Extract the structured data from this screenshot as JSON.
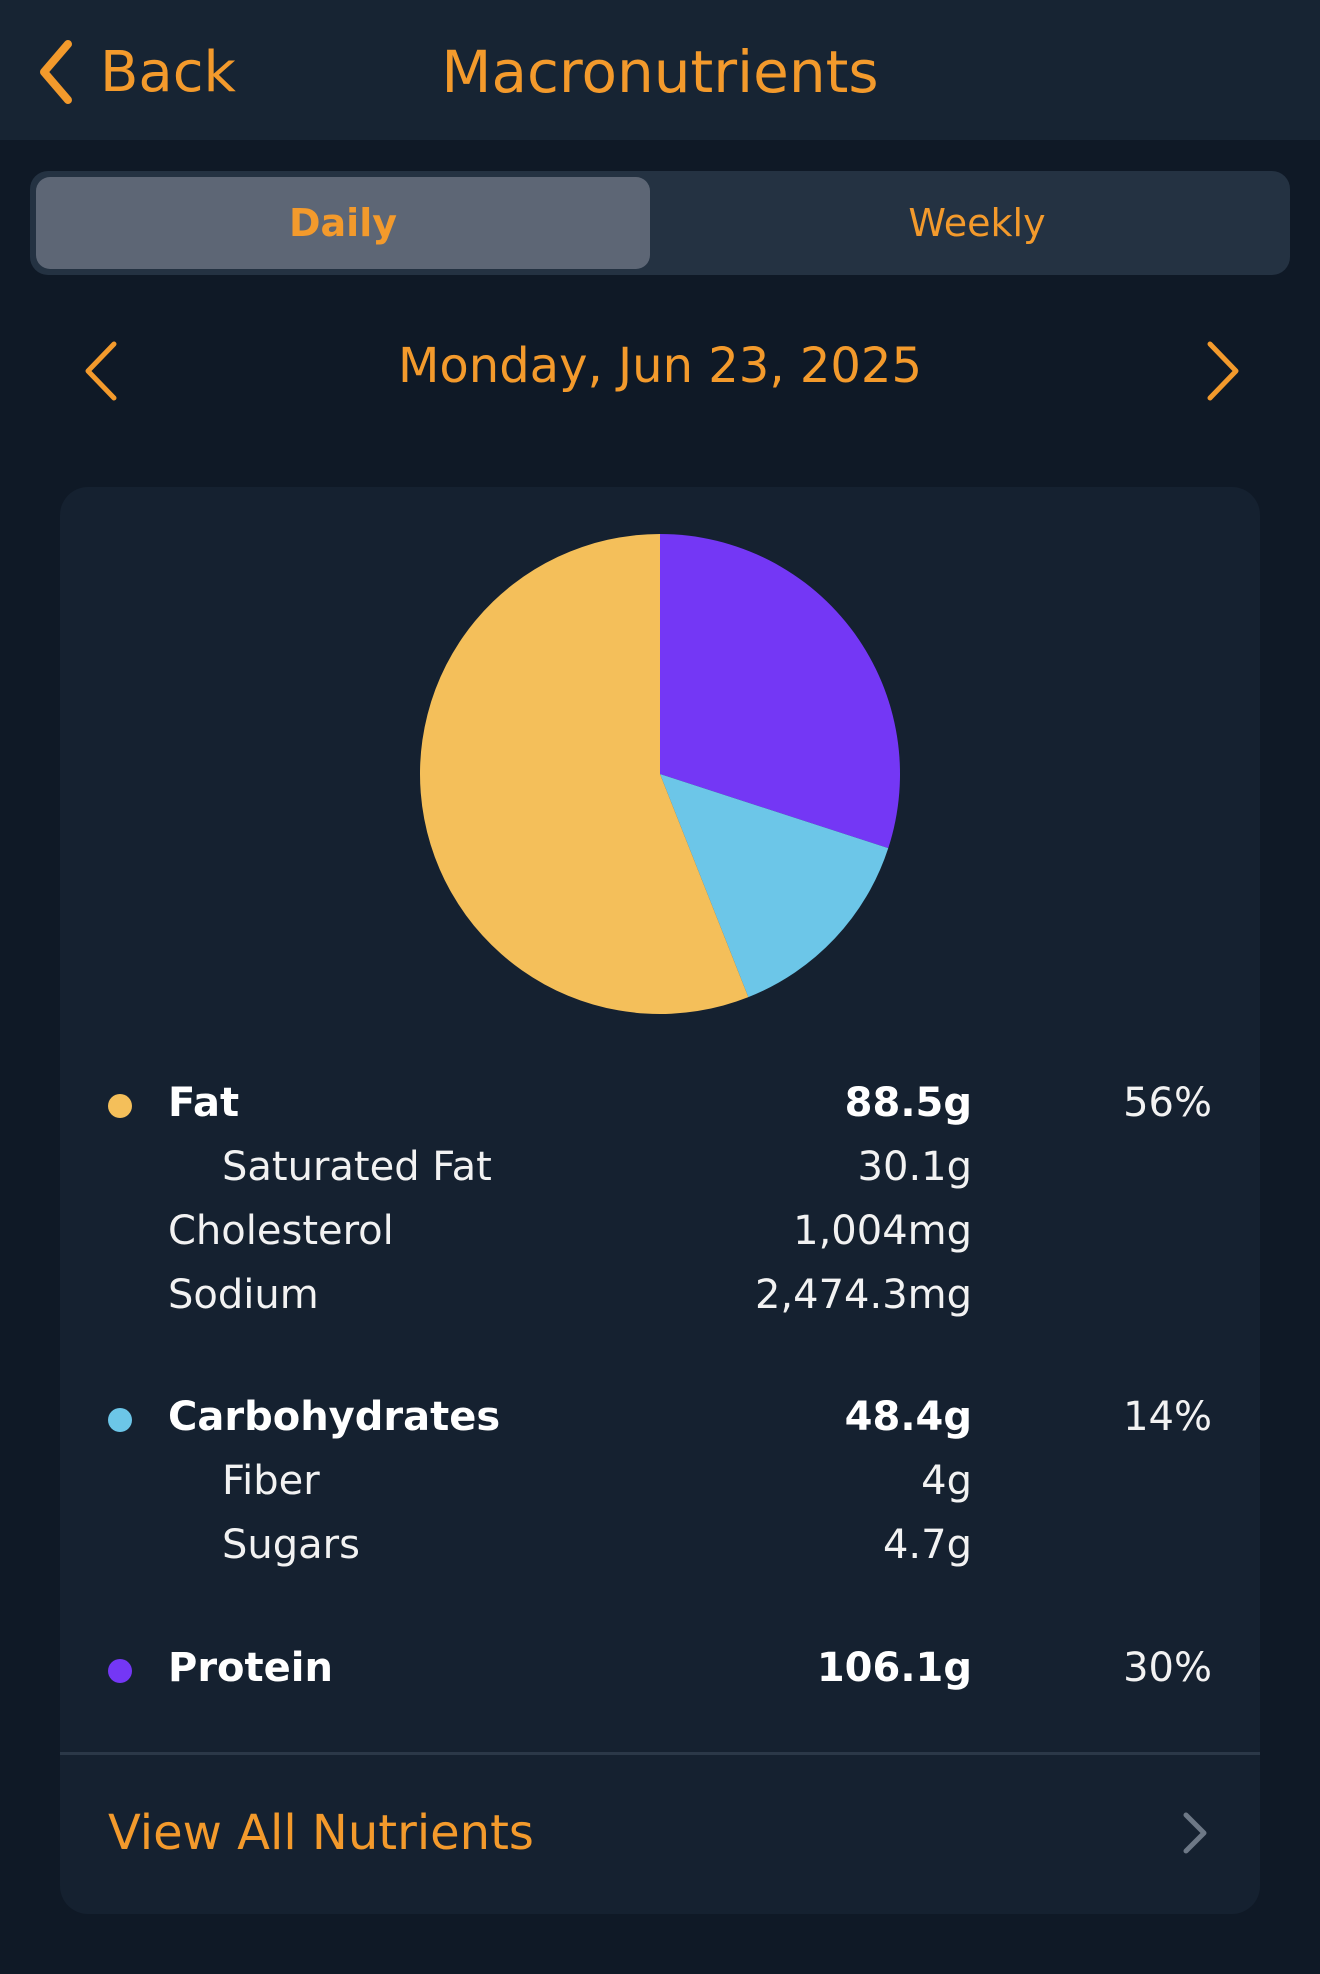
{
  "nav": {
    "back_label": "Back",
    "title": "Macronutrients"
  },
  "segmented": {
    "daily_label": "Daily",
    "weekly_label": "Weekly",
    "selected": "Daily"
  },
  "date": {
    "label": "Monday, Jun 23, 2025"
  },
  "chart_data": {
    "type": "pie",
    "slices": [
      {
        "name": "Fat",
        "value": 56,
        "color": "#f4bf5a"
      },
      {
        "name": "Carbohydrates",
        "value": 14,
        "color": "#6cc6e8"
      },
      {
        "name": "Protein",
        "value": 30,
        "color": "#7437f5"
      }
    ],
    "title": ""
  },
  "macros": {
    "fat": {
      "label": "Fat",
      "value": "88.5g",
      "percent": "56%",
      "color": "#f4bf5a",
      "saturated_fat": {
        "label": "Saturated Fat",
        "value": "30.1g"
      },
      "cholesterol": {
        "label": "Cholesterol",
        "value": "1,004mg"
      },
      "sodium": {
        "label": "Sodium",
        "value": "2,474.3mg"
      }
    },
    "carbs": {
      "label": "Carbohydrates",
      "value": "48.4g",
      "percent": "14%",
      "color": "#6cc6e8",
      "fiber": {
        "label": "Fiber",
        "value": "4g"
      },
      "sugars": {
        "label": "Sugars",
        "value": "4.7g"
      }
    },
    "protein": {
      "label": "Protein",
      "value": "106.1g",
      "percent": "30%",
      "color": "#7437f5"
    }
  },
  "footer": {
    "view_all_label": "View All Nutrients"
  },
  "colors": {
    "accent": "#f39a2c",
    "background": "#0f1926",
    "card": "#152130"
  },
  "icons": {
    "back": "chevron-left-icon",
    "prev_date": "chevron-left-icon",
    "next_date": "chevron-right-icon",
    "view_all": "chevron-right-icon"
  }
}
